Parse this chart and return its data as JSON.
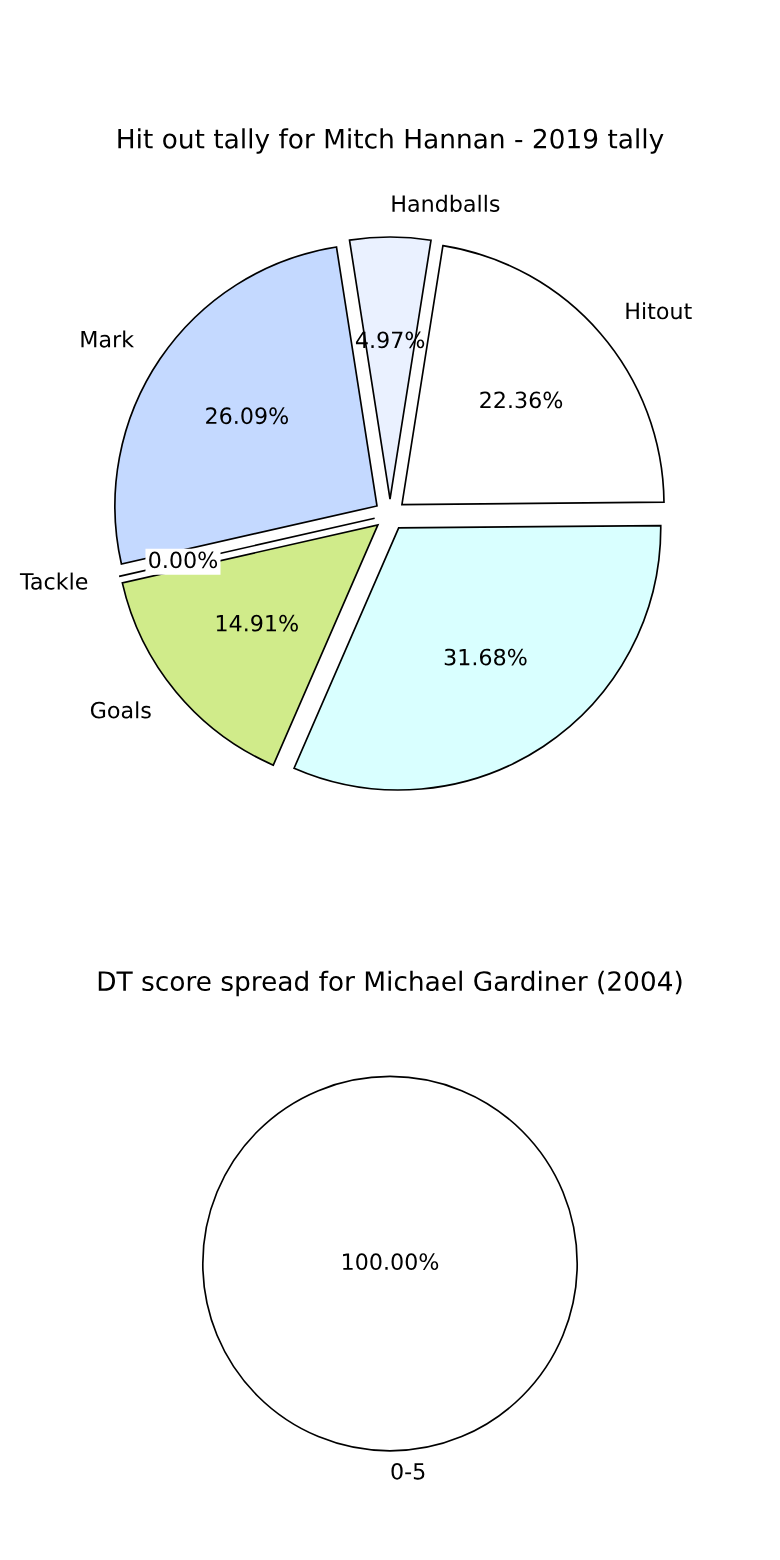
{
  "chart_data": [
    {
      "type": "pie",
      "title": "Hit out tally for Mitch Hannan - 2019 tally",
      "categories": [
        "Handballs",
        "Mark",
        "Tackle",
        "Goals",
        null,
        "Hitout"
      ],
      "values": [
        4.97,
        26.09,
        0.0,
        14.91,
        31.68,
        22.36
      ],
      "colors": [
        "#eaf1ff",
        "#c4d9ff",
        "#ffffff",
        "#d0eb8a",
        "#d9ffff",
        "#ffffff"
      ],
      "value_labels": [
        "4.97%",
        "26.09%",
        "0.00%",
        "14.91%",
        "31.68%",
        "22.36%"
      ]
    },
    {
      "type": "pie",
      "title": "DT score spread for Michael Gardiner (2004)",
      "categories": [
        "0-5"
      ],
      "values": [
        100
      ],
      "colors": [
        "#ffffff"
      ],
      "value_labels": [
        "100.00%"
      ]
    }
  ]
}
